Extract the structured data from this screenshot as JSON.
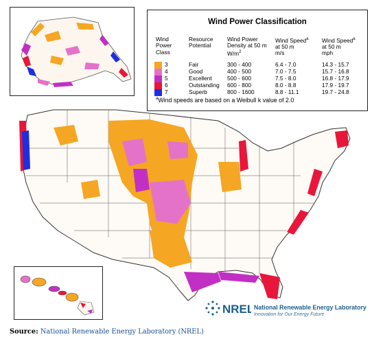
{
  "legend": {
    "title": "Wind Power Classification",
    "headers": {
      "wind_power_class": [
        "Wind",
        "Power",
        "Class"
      ],
      "resource_potential": [
        "Resource",
        "Potential"
      ],
      "wind_power_density": [
        "Wind Power",
        "Density at 50 m",
        "W/m"
      ],
      "wind_power_density_sup": "2",
      "wind_speed_ms": [
        "Wind Speed",
        "at 50 m",
        "m/s"
      ],
      "wind_speed_ms_sup": "a",
      "wind_speed_mph": [
        "Wind Speed",
        "at 50 m",
        "mph"
      ],
      "wind_speed_mph_sup": "a"
    },
    "rows": [
      {
        "class": "3",
        "potential": "Fair",
        "density": "300 - 400",
        "speed_ms": "6.4 - 7.0",
        "speed_mph": "14.3 - 15.7",
        "color": "#f5a623"
      },
      {
        "class": "4",
        "potential": "Good",
        "density": "400 - 500",
        "speed_ms": "7.0 - 7.5",
        "speed_mph": "15.7 - 16.8",
        "color": "#e472c8"
      },
      {
        "class": "5",
        "potential": "Excellent",
        "density": "500 - 600",
        "speed_ms": "7.5 - 8.0",
        "speed_mph": "16.8 - 17.9",
        "color": "#c22fc4"
      },
      {
        "class": "6",
        "potential": "Outstanding",
        "density": "600 - 800",
        "speed_ms": "8.0 - 8.8",
        "speed_mph": "17.9 - 19.7",
        "color": "#e8163a"
      },
      {
        "class": "7",
        "potential": "Superb",
        "density": "800 - 1600",
        "speed_ms": "8.8 - 11.1",
        "speed_mph": "19.7 - 24.8",
        "color": "#1f2ee0"
      }
    ],
    "footnote_marker": "a",
    "footnote": "Wind speeds are based on a Weibull k value of 2.0"
  },
  "logo": {
    "mark": "NREL",
    "name": "National Renewable Energy Laboratory",
    "tagline": "Innovation for Our Energy Future"
  },
  "source": {
    "label": "Source:",
    "value": "National Renewable Energy Laboratory (NREL)"
  },
  "colors": {
    "fair": "#f5a623",
    "good": "#e472c8",
    "excellent": "#c22fc4",
    "outstanding": "#e8163a",
    "superb": "#1f2ee0",
    "nrel_blue": "#1b5f8c"
  }
}
